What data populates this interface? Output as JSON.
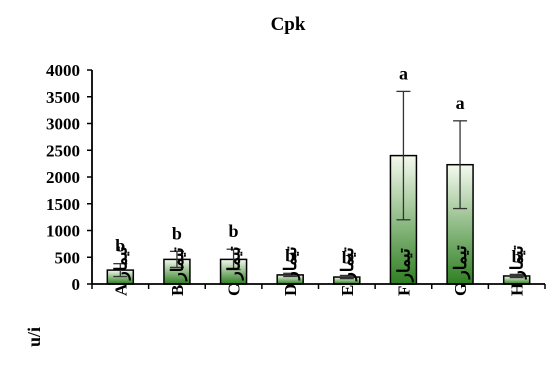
{
  "chart_data": {
    "type": "bar",
    "title": "Cpk",
    "ylabel": "u/i",
    "xlabel": "",
    "ylim": [
      0,
      4000
    ],
    "yticks": [
      "0",
      "500",
      "1000",
      "1500",
      "2000",
      "2500",
      "3000",
      "3500",
      "4000"
    ],
    "categories": [
      "تیمار A",
      "تیمار B",
      "تیمار C",
      "تیمار D",
      "تیمار E",
      "تیمار F",
      "تیمار G",
      "تیمار H"
    ],
    "values": [
      260,
      460,
      460,
      170,
      130,
      2400,
      2230,
      150
    ],
    "errors": [
      120,
      150,
      190,
      30,
      30,
      1200,
      820,
      30
    ],
    "significance": [
      "b",
      "b",
      "b",
      "b",
      "b",
      "a",
      "a",
      "b"
    ],
    "bar_color_top": "#f4faee",
    "bar_color_bottom": "#2f7f22",
    "bar_outline": "#000000",
    "grid": false,
    "legend": "none"
  }
}
